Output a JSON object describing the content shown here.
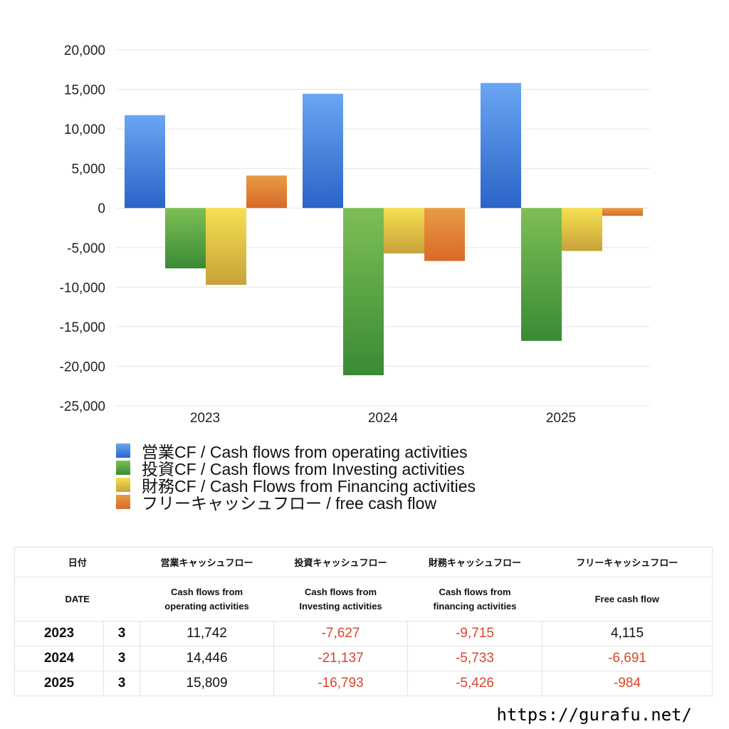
{
  "chart_data": {
    "type": "bar",
    "categories": [
      "2023",
      "2024",
      "2025"
    ],
    "ylim": [
      -25000,
      20000
    ],
    "yticks": [
      20000,
      15000,
      10000,
      5000,
      0,
      -5000,
      -10000,
      -15000,
      -20000,
      -25000
    ],
    "ytick_labels": [
      "20,000",
      "15,000",
      "10,000",
      "5,000",
      "0",
      "-5,000",
      "-10,000",
      "-15,000",
      "-20,000",
      "-25,000"
    ],
    "grid": true,
    "legend_position": "bottom",
    "series": [
      {
        "name": "営業CF / Cash flows from operating activities",
        "values": [
          11742,
          14446,
          15809
        ],
        "color_top": "#6aa6f2",
        "color_bottom": "#2a64c8"
      },
      {
        "name": "投資CF / Cash flows from Investing activities",
        "values": [
          -7627,
          -21137,
          -16793
        ],
        "color_top": "#7dbf55",
        "color_bottom": "#3a8a35"
      },
      {
        "name": "財務CF / Cash Flows from Financing activities",
        "values": [
          -9715,
          -5733,
          -5426
        ],
        "color_top": "#f5e050",
        "color_bottom": "#c8a23a"
      },
      {
        "name": "フリーキャッシュフロー / free cash flow",
        "values": [
          4115,
          -6691,
          -984
        ],
        "color_top": "#e89b45",
        "color_bottom": "#d86a28"
      }
    ]
  },
  "table": {
    "headers_ja": [
      "日付",
      "営業キャッシュフロー",
      "投資キャッシュフロー",
      "財務キャッシュフロー",
      "フリーキャッシュフロー"
    ],
    "headers_en": [
      "DATE",
      "Cash flows from\noperating activities",
      "Cash flows from\nInvesting activities",
      "Cash flows from\nfinancing activities",
      "Free cash flow"
    ],
    "rows": [
      {
        "year": "2023",
        "month": "3",
        "values": [
          "11,742",
          "-7,627",
          "-9,715",
          "4,115"
        ]
      },
      {
        "year": "2024",
        "month": "3",
        "values": [
          "14,446",
          "-21,137",
          "-5,733",
          "-6,691"
        ]
      },
      {
        "year": "2025",
        "month": "3",
        "values": [
          "15,809",
          "-16,793",
          "-5,426",
          "-984"
        ]
      }
    ]
  },
  "footer": {
    "url": "https://gurafu.net/"
  },
  "colors": {
    "negative": "#d9452b",
    "positive": "#111111",
    "grid": "#e6e6e6"
  }
}
